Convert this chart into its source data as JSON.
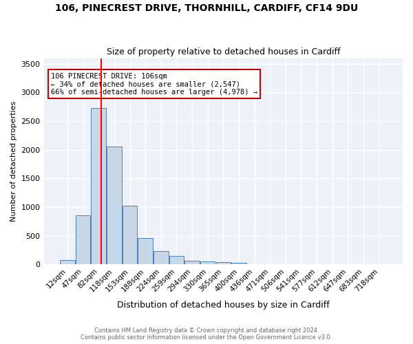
{
  "title_line1": "106, PINECREST DRIVE, THORNHILL, CARDIFF, CF14 9DU",
  "title_line2": "Size of property relative to detached houses in Cardiff",
  "xlabel": "Distribution of detached houses by size in Cardiff",
  "ylabel": "Number of detached properties",
  "bin_labels": [
    "12sqm",
    "47sqm",
    "82sqm",
    "118sqm",
    "153sqm",
    "188sqm",
    "224sqm",
    "259sqm",
    "294sqm",
    "330sqm",
    "365sqm",
    "400sqm",
    "436sqm",
    "471sqm",
    "506sqm",
    "541sqm",
    "577sqm",
    "612sqm",
    "647sqm",
    "683sqm",
    "718sqm"
  ],
  "bar_heights": [
    70,
    850,
    2730,
    2060,
    1020,
    460,
    230,
    150,
    60,
    50,
    35,
    30,
    0,
    0,
    0,
    0,
    0,
    0,
    0,
    0,
    0
  ],
  "bar_color": "#c8d8e8",
  "bar_edge_color": "#4a7fbd",
  "ylim": [
    0,
    3600
  ],
  "yticks": [
    0,
    500,
    1000,
    1500,
    2000,
    2500,
    3000,
    3500
  ],
  "property_size": 106,
  "annotation_title": "106 PINECREST DRIVE: 106sqm",
  "annotation_line1": "← 34% of detached houses are smaller (2,547)",
  "annotation_line2": "66% of semi-detached houses are larger (4,978) →",
  "annotation_box_color": "#ffffff",
  "annotation_box_edge": "#cc0000",
  "footer_line1": "Contains HM Land Registry data © Crown copyright and database right 2024.",
  "footer_line2": "Contains public sector information licensed under the Open Government Licence v3.0.",
  "background_color": "#eef2f8",
  "grid_color": "#ffffff"
}
